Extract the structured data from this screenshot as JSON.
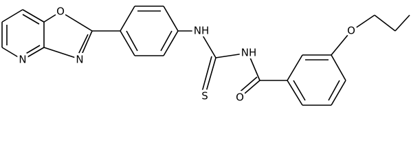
{
  "atoms": [
    {
      "label": "N"
    },
    {
      "label": "O"
    },
    {
      "label": "N"
    },
    {
      "label": "NH"
    },
    {
      "label": "S"
    },
    {
      "label": "NH"
    },
    {
      "label": "O"
    },
    {
      "label": "O"
    }
  ]
}
